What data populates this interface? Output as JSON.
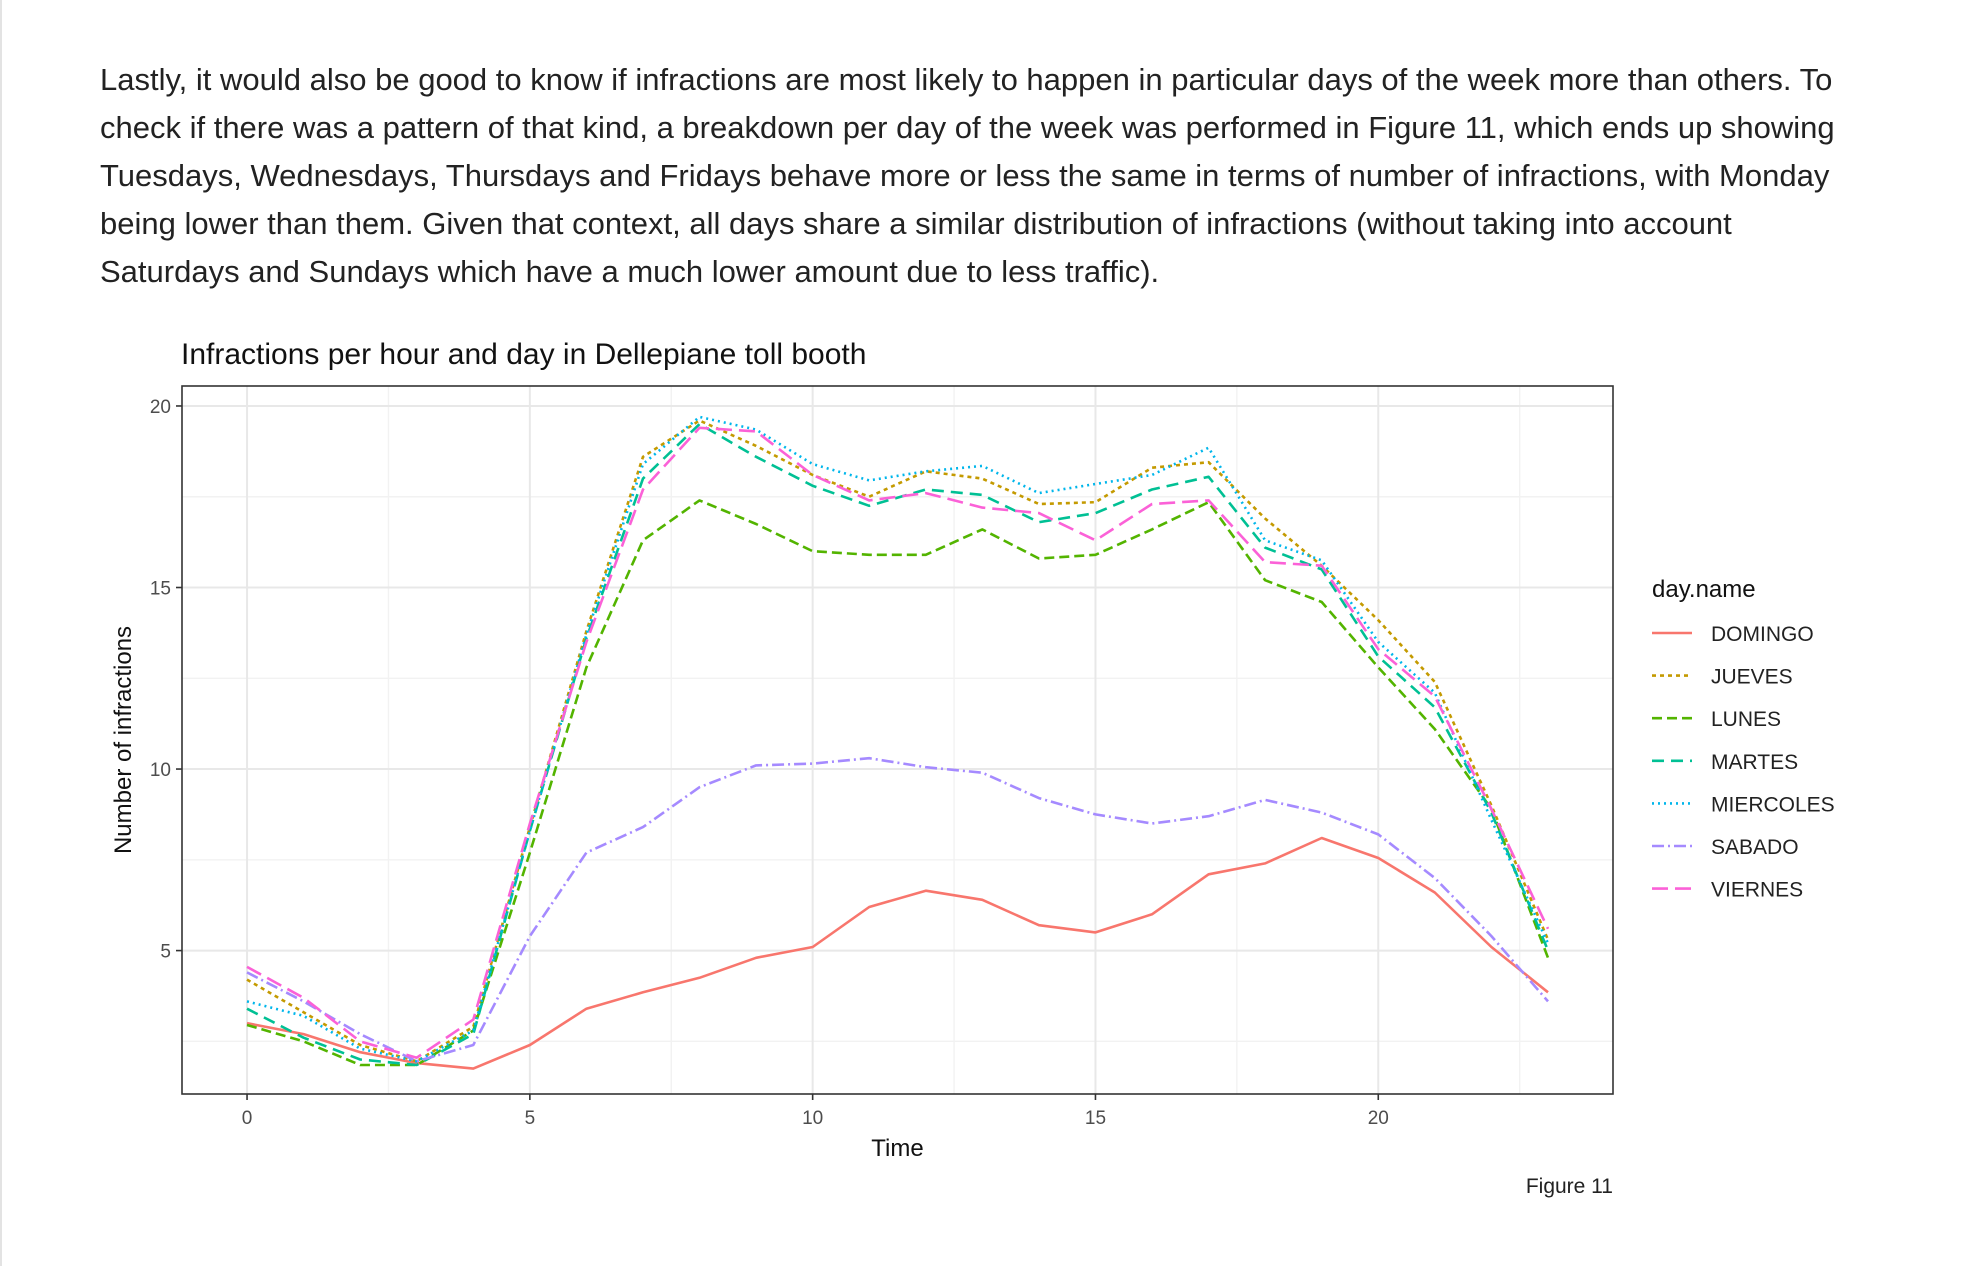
{
  "text": {
    "paragraph": "Lastly, it would also be good to know if infractions are most likely to happen in particular days of the week more than others. To check if there was a pattern of that kind, a breakdown per day of the week was performed in Figure 11, which ends up showing Tuesdays, Wednesdays, Thursdays and Fridays behave more or less the same in terms of number of infractions, with Monday being lower than them. Given that context, all days share a similar distribution of infractions (without taking into account Saturdays and Sundays which have a much lower amount due to less traffic).",
    "caption": "Figure 11"
  },
  "chart_data": {
    "type": "line",
    "title": "Infractions per hour and day in Dellepiane toll booth",
    "xlabel": "Time",
    "ylabel": "Number of infractions",
    "xlim": [
      -1.15,
      24.15
    ],
    "ylim": [
      1.05,
      20.55
    ],
    "x_ticks": [
      0,
      5,
      10,
      15,
      20
    ],
    "y_ticks": [
      5,
      10,
      15,
      20
    ],
    "grid": true,
    "legend_title": "day.name",
    "legend_position": "right",
    "x": [
      0,
      1,
      2,
      3,
      4,
      5,
      6,
      7,
      8,
      9,
      10,
      11,
      12,
      13,
      14,
      15,
      16,
      17,
      18,
      19,
      20,
      21,
      22,
      23
    ],
    "series": [
      {
        "name": "DOMINGO",
        "color": "#F8766D",
        "dash": "",
        "values": [
          3.0,
          2.7,
          2.2,
          1.9,
          1.75,
          2.4,
          3.4,
          3.85,
          4.25,
          4.8,
          5.1,
          6.2,
          6.65,
          6.4,
          5.7,
          5.5,
          6.0,
          7.1,
          7.4,
          8.1,
          7.55,
          6.6,
          5.1,
          3.85
        ]
      },
      {
        "name": "JUEVES",
        "color": "#C49A00",
        "dash": "4,4",
        "values": [
          4.2,
          3.3,
          2.4,
          1.95,
          2.9,
          8.4,
          13.8,
          18.6,
          19.6,
          18.9,
          18.1,
          17.5,
          18.2,
          18.0,
          17.3,
          17.35,
          18.3,
          18.45,
          16.9,
          15.6,
          14.1,
          12.4,
          9.0,
          5.3
        ]
      },
      {
        "name": "LUNES",
        "color": "#53B400",
        "dash": "10,5",
        "values": [
          2.95,
          2.5,
          1.85,
          1.85,
          2.8,
          7.7,
          12.8,
          16.3,
          17.4,
          16.75,
          16.0,
          15.9,
          15.9,
          16.6,
          15.8,
          15.9,
          16.6,
          17.35,
          15.2,
          14.6,
          12.8,
          11.1,
          8.9,
          4.8
        ]
      },
      {
        "name": "MARTES",
        "color": "#00C094",
        "dash": "12,7",
        "values": [
          3.4,
          2.6,
          2.0,
          1.85,
          2.7,
          8.3,
          13.6,
          18.0,
          19.5,
          18.6,
          17.8,
          17.25,
          17.7,
          17.55,
          16.8,
          17.05,
          17.7,
          18.05,
          16.1,
          15.5,
          13.1,
          11.7,
          8.8,
          5.0
        ]
      },
      {
        "name": "MIERCOLES",
        "color": "#00B6EB",
        "dash": "2,4",
        "values": [
          3.6,
          3.2,
          2.3,
          1.95,
          2.8,
          8.3,
          13.7,
          18.4,
          19.7,
          19.35,
          18.4,
          17.95,
          18.2,
          18.35,
          17.6,
          17.85,
          18.1,
          18.85,
          16.3,
          15.75,
          13.5,
          12.1,
          8.6,
          5.2
        ]
      },
      {
        "name": "SABADO",
        "color": "#A58AFF",
        "dash": "12,4,2,4",
        "values": [
          4.4,
          3.6,
          2.7,
          1.95,
          2.4,
          5.4,
          7.7,
          8.4,
          9.5,
          10.1,
          10.15,
          10.3,
          10.05,
          9.9,
          9.2,
          8.75,
          8.5,
          8.7,
          9.15,
          8.8,
          8.2,
          7.0,
          5.4,
          3.6
        ]
      },
      {
        "name": "VIERNES",
        "color": "#FB61D7",
        "dash": "16,7",
        "values": [
          4.55,
          3.7,
          2.5,
          2.05,
          3.1,
          8.5,
          13.5,
          17.7,
          19.4,
          19.3,
          18.1,
          17.4,
          17.6,
          17.2,
          17.05,
          16.3,
          17.3,
          17.4,
          15.7,
          15.6,
          13.3,
          12.0,
          8.9,
          5.6
        ]
      }
    ]
  }
}
